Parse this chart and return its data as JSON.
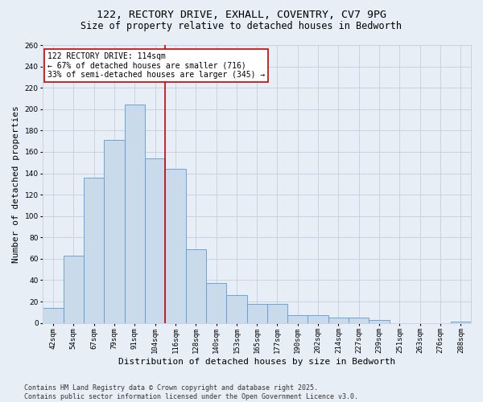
{
  "title_line1": "122, RECTORY DRIVE, EXHALL, COVENTRY, CV7 9PG",
  "title_line2": "Size of property relative to detached houses in Bedworth",
  "xlabel": "Distribution of detached houses by size in Bedworth",
  "ylabel": "Number of detached properties",
  "categories": [
    "42sqm",
    "54sqm",
    "67sqm",
    "79sqm",
    "91sqm",
    "104sqm",
    "116sqm",
    "128sqm",
    "140sqm",
    "153sqm",
    "165sqm",
    "177sqm",
    "190sqm",
    "202sqm",
    "214sqm",
    "227sqm",
    "239sqm",
    "251sqm",
    "263sqm",
    "276sqm",
    "288sqm"
  ],
  "values": [
    14,
    63,
    136,
    171,
    204,
    154,
    144,
    69,
    37,
    26,
    18,
    18,
    7,
    7,
    5,
    5,
    3,
    0,
    0,
    0,
    1
  ],
  "bar_color": "#c9daea",
  "bar_edge_color": "#5b9bd5",
  "grid_color": "#c8d4e4",
  "background_color": "#e8eef6",
  "vline_x": 5.5,
  "vline_color": "#cc0000",
  "annotation_text": "122 RECTORY DRIVE: 114sqm\n← 67% of detached houses are smaller (716)\n33% of semi-detached houses are larger (345) →",
  "annotation_box_color": "#ffffff",
  "annotation_box_edge": "#cc0000",
  "ylim": [
    0,
    260
  ],
  "yticks": [
    0,
    20,
    40,
    60,
    80,
    100,
    120,
    140,
    160,
    180,
    200,
    220,
    240,
    260
  ],
  "footer_text": "Contains HM Land Registry data © Crown copyright and database right 2025.\nContains public sector information licensed under the Open Government Licence v3.0.",
  "title_fontsize": 9.5,
  "subtitle_fontsize": 8.5,
  "tick_fontsize": 6.5,
  "ylabel_fontsize": 8,
  "xlabel_fontsize": 8,
  "annotation_fontsize": 7,
  "footer_fontsize": 6
}
